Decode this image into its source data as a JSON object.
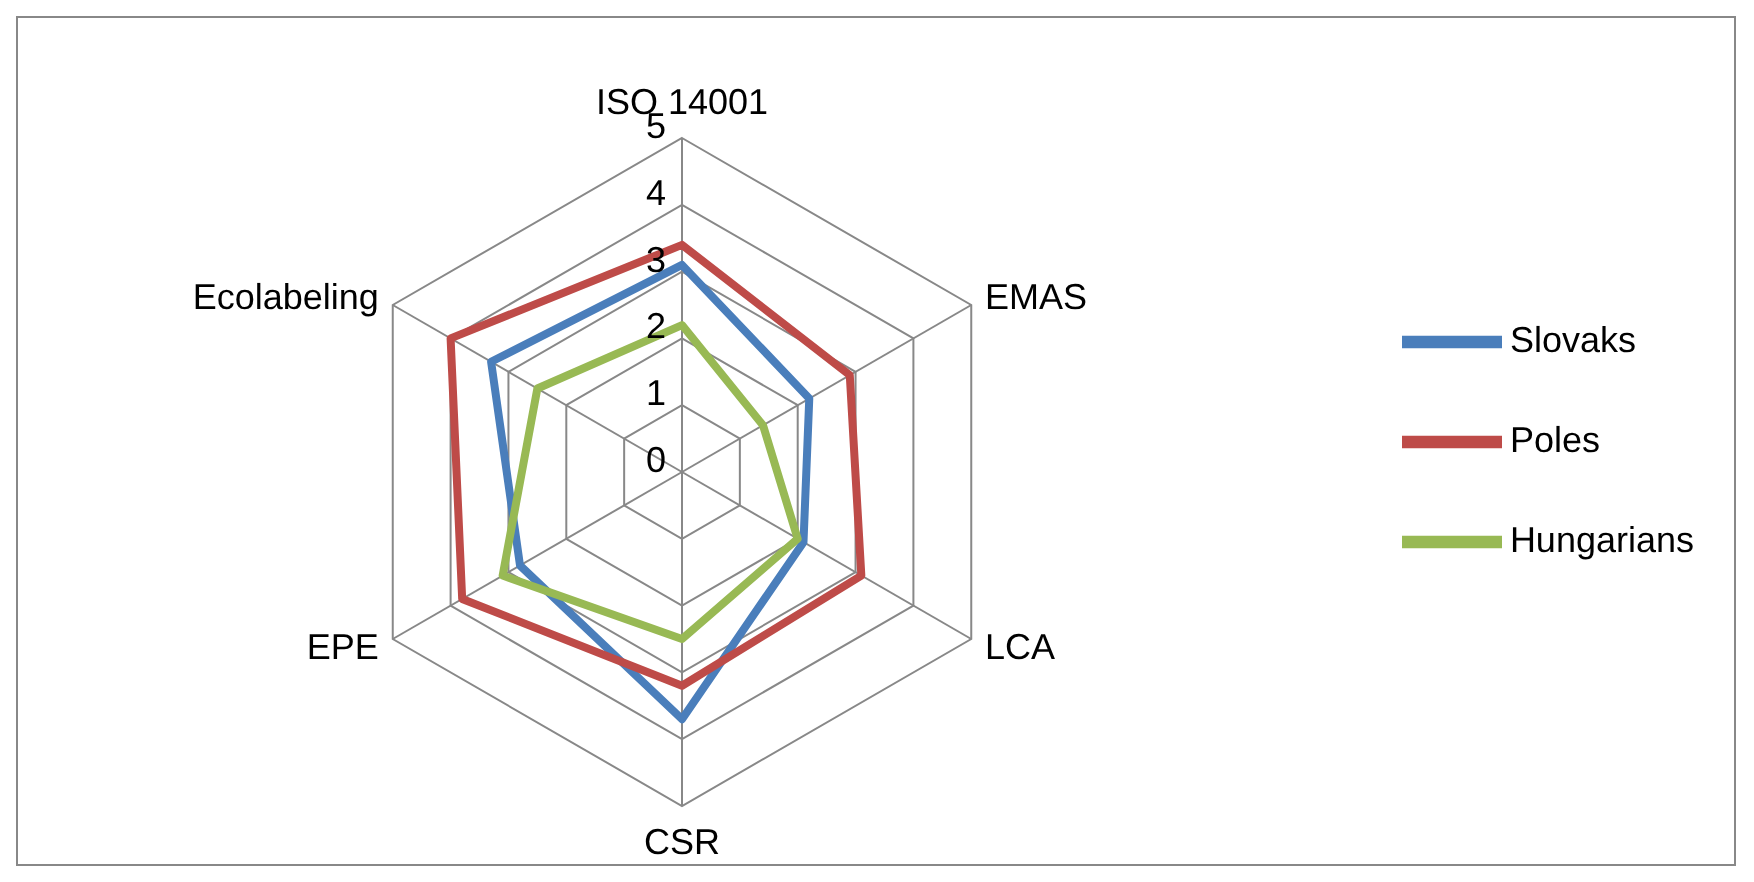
{
  "chart_data": {
    "type": "radar",
    "categories": [
      "ISO 14001",
      "EMAS",
      "LCA",
      "CSR",
      "EPE",
      "Ecolabeling"
    ],
    "series": [
      {
        "name": "Slovaks",
        "color": "#4a7ebb",
        "values": [
          3.1,
          2.2,
          2.1,
          3.7,
          2.8,
          3.3
        ]
      },
      {
        "name": "Poles",
        "color": "#be4b48",
        "values": [
          3.4,
          2.9,
          3.1,
          3.2,
          3.8,
          4.0
        ]
      },
      {
        "name": "Hungarians",
        "color": "#98b954",
        "values": [
          2.2,
          1.4,
          2.0,
          2.5,
          3.1,
          2.5
        ]
      }
    ],
    "ylim": [
      0,
      5
    ],
    "yticks": [
      0,
      1,
      2,
      3,
      4,
      5
    ],
    "grid": true,
    "legend": "right",
    "marker": "none",
    "line_style": "solid"
  }
}
